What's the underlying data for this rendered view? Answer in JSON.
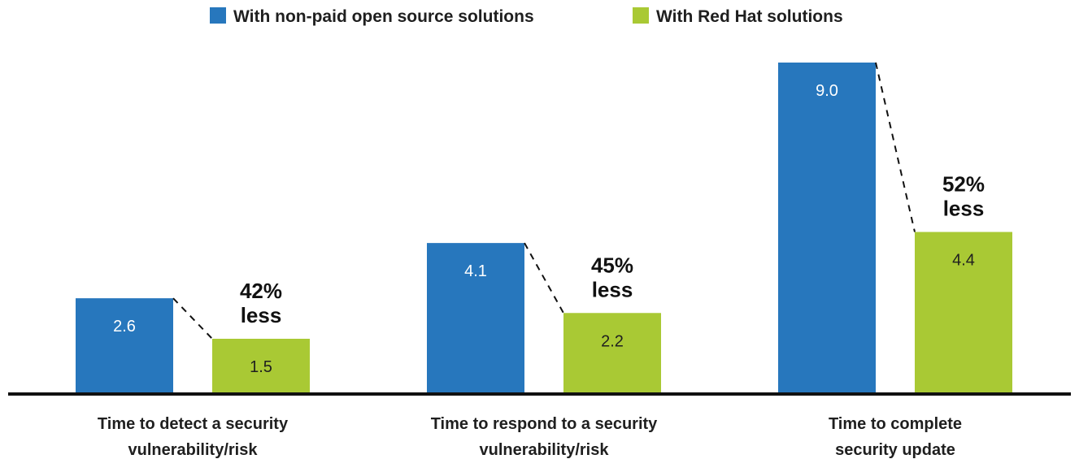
{
  "chart_data": {
    "type": "bar",
    "categories": [
      [
        "Time to detect a security",
        "vulnerability/risk"
      ],
      [
        "Time to respond to a security",
        "vulnerability/risk"
      ],
      [
        "Time to complete",
        "security update"
      ]
    ],
    "series": [
      {
        "name": "With non-paid open source solutions",
        "color": "#2777bd",
        "label_color": "#ffffff",
        "values": [
          2.6,
          4.1,
          9.0
        ]
      },
      {
        "name": "With Red Hat solutions",
        "color": "#a9c934",
        "label_color": "#1f1f1f",
        "values": [
          1.5,
          2.2,
          4.4
        ]
      }
    ],
    "value_labels": [
      [
        "2.6",
        "4.1",
        "9.0"
      ],
      [
        "1.5",
        "2.2",
        "4.4"
      ]
    ],
    "annotations": [
      [
        "42%",
        "less"
      ],
      [
        "45%",
        "less"
      ],
      [
        "52%",
        "less"
      ]
    ],
    "title": "",
    "xlabel": "",
    "ylabel": "",
    "ylim": [
      0,
      9.0
    ],
    "grid": false,
    "legend_position": "top-center"
  }
}
